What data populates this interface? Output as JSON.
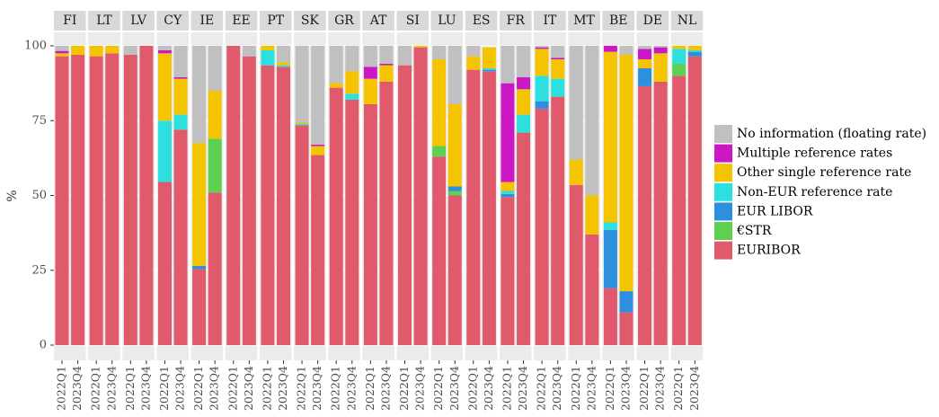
{
  "chart_data": {
    "type": "bar",
    "stacked": true,
    "ylabel": "%",
    "facets": [
      "FI",
      "LT",
      "LV",
      "CY",
      "IE",
      "EE",
      "PT",
      "SK",
      "GR",
      "AT",
      "SI",
      "LU",
      "ES",
      "FR",
      "IT",
      "MT",
      "BE",
      "DE",
      "NL"
    ],
    "categories": [
      "2022Q1",
      "2023Q4",
      "2022Q1",
      "2023Q4",
      "2022Q1",
      "2023Q4",
      "2022Q1",
      "2023Q4",
      "2022Q1",
      "2023Q4",
      "2022Q1",
      "2023Q4",
      "2022Q1",
      "2023Q4",
      "2022Q1",
      "2023Q4",
      "2022Q1",
      "2023Q4",
      "2022Q1",
      "2023Q4",
      "2022Q1",
      "2023Q4",
      "2022Q1",
      "2023Q4",
      "2022Q1",
      "2023Q4",
      "2022Q1",
      "2023Q4",
      "2022Q1",
      "2023Q4",
      "2022Q1",
      "2023Q4",
      "2022Q1",
      "2023Q4",
      "2022Q1",
      "2023Q4",
      "2022Q1",
      "2023Q4"
    ],
    "series": [
      {
        "name": "EURIBOR",
        "color": "#e05a6c",
        "values": [
          96.5,
          97,
          96.5,
          97.5,
          97,
          100,
          54.5,
          72,
          25.5,
          51,
          100,
          96.5,
          93.5,
          93,
          73.5,
          63.5,
          86,
          82,
          80.5,
          88,
          93.5,
          99.5,
          63,
          50,
          92,
          91.5,
          49.5,
          71,
          79,
          83,
          53.5,
          37,
          19,
          11,
          86.5,
          88,
          90,
          96.5
        ]
      },
      {
        "name": "€STR",
        "color": "#5fcf4f",
        "values": [
          0,
          0,
          0,
          0,
          0,
          0,
          0,
          0,
          0,
          18,
          0,
          0,
          0,
          0,
          0,
          0,
          0,
          0,
          0,
          0,
          0,
          0,
          3.5,
          1.5,
          0,
          0,
          0,
          0,
          0,
          0,
          0,
          0,
          0,
          0,
          0,
          0,
          4,
          0
        ]
      },
      {
        "name": "EUR LIBOR",
        "color": "#2f8fdf",
        "values": [
          0,
          0,
          0,
          0,
          0,
          0,
          0,
          0,
          1,
          0,
          0,
          0,
          0,
          0,
          0,
          0,
          0,
          0,
          0,
          0,
          0,
          0,
          0,
          1.5,
          0,
          0.5,
          1,
          0,
          2.5,
          0,
          0,
          0,
          19.5,
          7,
          6,
          0,
          0,
          1.5
        ]
      },
      {
        "name": "Non-EUR reference rate",
        "color": "#2de0e0",
        "values": [
          0,
          0,
          0,
          0,
          0,
          0,
          20.5,
          5,
          0,
          0,
          0,
          0,
          5,
          0.5,
          0.5,
          0,
          0,
          2,
          0,
          0,
          0,
          0,
          0,
          0,
          0,
          0.5,
          1,
          6,
          8.5,
          6,
          0,
          0,
          2.5,
          0,
          0,
          0,
          5,
          0.5
        ]
      },
      {
        "name": "Other single reference rate",
        "color": "#f5c400",
        "values": [
          1,
          3,
          3.5,
          2.5,
          0,
          0,
          22.5,
          12,
          41,
          16,
          0,
          0,
          1.5,
          1,
          0.5,
          3,
          1.5,
          7.5,
          8.5,
          5.5,
          0,
          0.5,
          29,
          27.5,
          4.5,
          7,
          3,
          8.5,
          9,
          6.5,
          8.5,
          13,
          57,
          79,
          3,
          9.5,
          1,
          1.5
        ]
      },
      {
        "name": "Multiple reference rates",
        "color": "#cc18c4",
        "values": [
          0.8,
          0,
          0,
          0,
          0,
          0,
          1,
          0.5,
          0,
          0,
          0,
          0,
          0,
          0,
          0,
          0.5,
          0,
          0,
          4,
          0.5,
          0,
          0,
          0,
          0,
          0,
          0,
          33,
          4,
          0.5,
          0.5,
          0,
          0,
          2,
          0,
          3.5,
          2,
          0,
          0
        ]
      },
      {
        "name": "No information (floating rate)",
        "color": "#c0c0c0",
        "values": [
          1.7,
          0,
          0,
          0,
          3,
          0,
          1.5,
          10.5,
          32.5,
          15,
          0,
          3.5,
          0,
          5.5,
          25.5,
          33,
          12.5,
          8.5,
          7,
          6,
          6.5,
          0,
          4.5,
          19.5,
          3.5,
          0,
          12.5,
          10.5,
          0.5,
          4,
          38,
          50,
          0,
          3,
          1,
          0.5,
          0,
          0
        ]
      }
    ],
    "ylim": [
      0,
      100
    ],
    "yticks": [
      0,
      25,
      50,
      75,
      100
    ],
    "grid": true
  }
}
